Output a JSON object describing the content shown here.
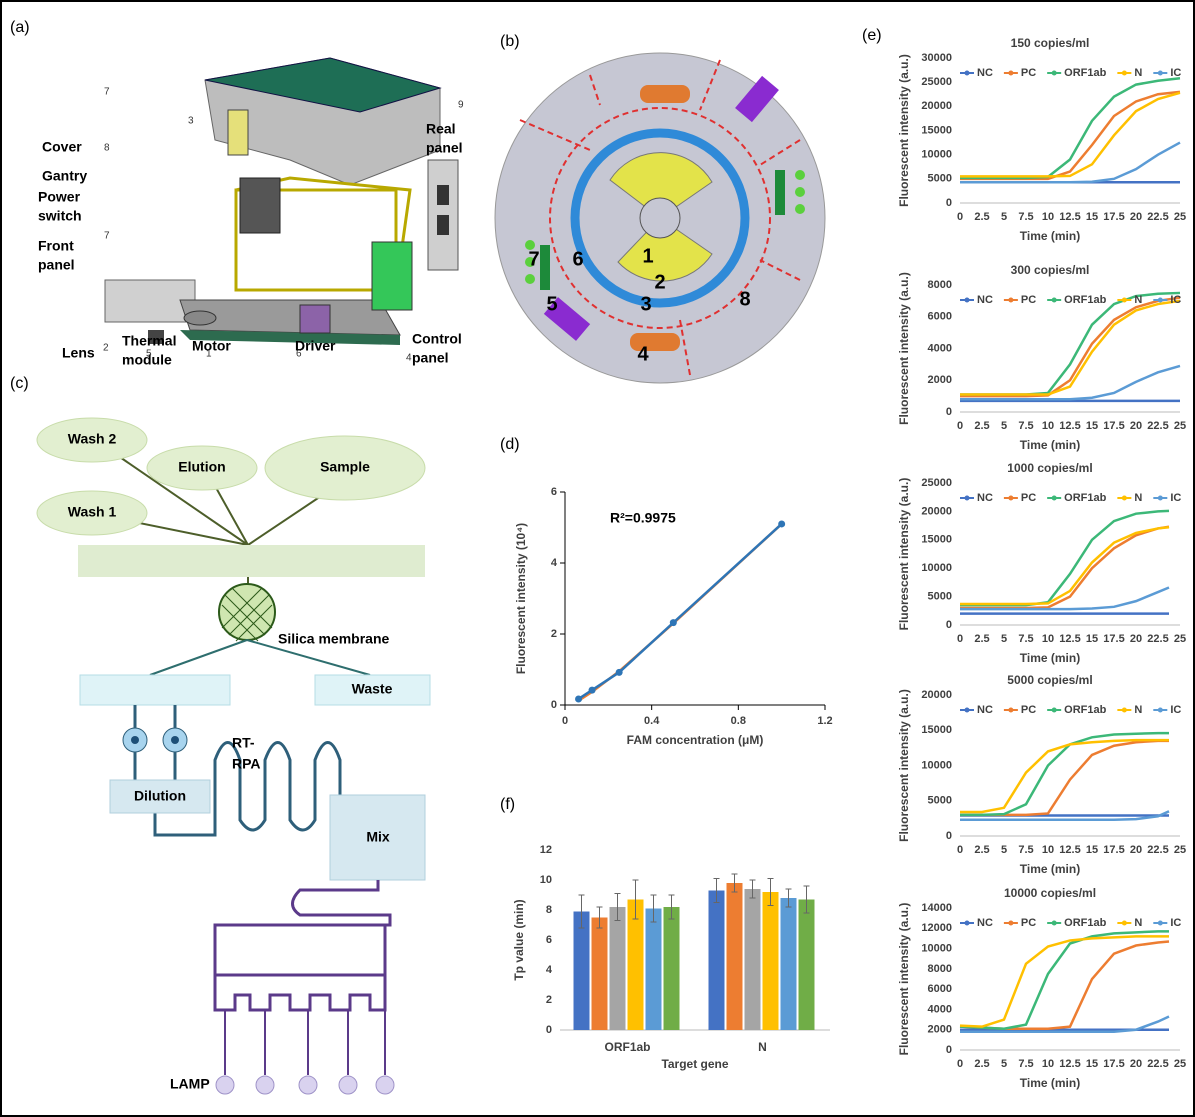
{
  "panel_labels": [
    "(a)",
    "(b)",
    "(c)",
    "(d)",
    "(e)",
    "(f)"
  ],
  "panel_a": {
    "labels": [
      {
        "text": [
          "Cover"
        ],
        "number": "7"
      },
      {
        "text": [
          "Gantry"
        ],
        "number": "3"
      },
      {
        "text": [
          "Power",
          "switch"
        ],
        "number": "8"
      },
      {
        "text": [
          "Front",
          "panel"
        ],
        "number": "7"
      },
      {
        "text": [
          "Lens"
        ],
        "number": "2"
      },
      {
        "text": [
          "Thermal",
          "module"
        ],
        "number": "5"
      },
      {
        "text": [
          "Motor"
        ],
        "number": "1"
      },
      {
        "text": [
          "Driver"
        ],
        "number": "6"
      },
      {
        "text": [
          "Control",
          "panel"
        ],
        "number": "4"
      },
      {
        "text": [
          "Real",
          "panel"
        ],
        "number": "9"
      }
    ]
  },
  "panel_b": {
    "zones": [
      "1",
      "2",
      "3",
      "4",
      "5",
      "6",
      "7",
      "8"
    ]
  },
  "panel_c": {
    "wash2": "Wash 2",
    "elution": "Elution",
    "sample": "Sample",
    "wash1": "Wash 1",
    "membrane": "Silica membrane",
    "waste": "Waste",
    "rt_rpa": [
      "RT-",
      "RPA"
    ],
    "dilution": "Dilution",
    "mix": "Mix",
    "lamp": "LAMP"
  },
  "chart_data": [
    {
      "type": "line",
      "x": [
        0.0625,
        0.125,
        0.25,
        0.5,
        1.0
      ],
      "xlim": [
        0,
        1.2
      ],
      "xticks": [
        0,
        0.4,
        0.8,
        1.2
      ],
      "ylim": [
        0,
        6
      ],
      "yticks": [
        0,
        2,
        4,
        6
      ],
      "x_label": "FAM concentration (μM)",
      "y_label": "Fluorescent intensity (10⁴)",
      "annotation": "R²=0.9975",
      "y_axis_line": true,
      "tick_marks": true,
      "series": [
        {
          "color": "#ed7d31",
          "values": [
            0.12,
            0.37,
            0.95,
            2.3,
            5.1
          ]
        },
        {
          "color": "#2e75b6",
          "values": [
            0.17,
            0.42,
            0.92,
            2.32,
            5.1
          ],
          "markers": true
        }
      ]
    },
    {
      "type": "line",
      "title": "150 copies/ml",
      "x": [
        0,
        2.5,
        5,
        7.5,
        10,
        12.5,
        15,
        17.5,
        20,
        22.5,
        25
      ],
      "xlim": [
        0,
        25
      ],
      "xticks": [
        0,
        2.5,
        5,
        7.5,
        10,
        12.5,
        15,
        17.5,
        20,
        22.5,
        25
      ],
      "ylim": [
        0,
        30000
      ],
      "yticks": [
        0,
        5000,
        10000,
        15000,
        20000,
        25000,
        30000
      ],
      "x_label": "Time (min)",
      "y_label": "Fluorescent intensity (a.u.)",
      "legend": "top",
      "series": [
        {
          "name": "NC",
          "color": "#4472c4",
          "values": [
            4300,
            4300,
            4300,
            4300,
            4300,
            4300,
            4300,
            4300,
            4300,
            4300,
            4300
          ]
        },
        {
          "name": "PC",
          "color": "#ed7d31",
          "values": [
            5000,
            5000,
            5000,
            5000,
            5000,
            6500,
            12000,
            18000,
            21000,
            22500,
            23000
          ]
        },
        {
          "name": "ORF1ab",
          "color": "#3cb878",
          "values": [
            5200,
            5200,
            5200,
            5200,
            5400,
            9000,
            17000,
            22000,
            24500,
            25300,
            25800
          ]
        },
        {
          "name": "N",
          "color": "#ffc000",
          "values": [
            5500,
            5500,
            5500,
            5500,
            5500,
            5600,
            8000,
            14000,
            19000,
            21500,
            22800
          ]
        },
        {
          "name": "IC",
          "color": "#5b9bd5",
          "values": [
            4300,
            4300,
            4300,
            4300,
            4300,
            4300,
            4400,
            5000,
            7000,
            10000,
            12500
          ]
        }
      ]
    },
    {
      "type": "line",
      "title": "300 copies/ml",
      "x": [
        0,
        2.5,
        5,
        7.5,
        10,
        12.5,
        15,
        17.5,
        20,
        22.5,
        25
      ],
      "xlim": [
        0,
        25
      ],
      "xticks": [
        0,
        2.5,
        5,
        7.5,
        10,
        12.5,
        15,
        17.5,
        20,
        22.5,
        25
      ],
      "ylim": [
        0,
        8000
      ],
      "yticks": [
        0,
        2000,
        4000,
        6000,
        8000
      ],
      "x_label": "Time (min)",
      "y_label": "Fluorescent intensity (a.u.)",
      "legend": "top",
      "series": [
        {
          "name": "NC",
          "color": "#4472c4",
          "values": [
            700,
            700,
            700,
            700,
            700,
            700,
            700,
            700,
            700,
            700,
            700
          ]
        },
        {
          "name": "PC",
          "color": "#ed7d31",
          "values": [
            1000,
            1000,
            1000,
            1000,
            1050,
            2000,
            4300,
            5800,
            6600,
            7000,
            7200
          ]
        },
        {
          "name": "ORF1ab",
          "color": "#3cb878",
          "values": [
            1100,
            1100,
            1100,
            1100,
            1200,
            3000,
            5500,
            6800,
            7300,
            7450,
            7500
          ]
        },
        {
          "name": "N",
          "color": "#ffc000",
          "values": [
            1100,
            1100,
            1100,
            1100,
            1100,
            1600,
            3800,
            5500,
            6400,
            6800,
            7000
          ]
        },
        {
          "name": "IC",
          "color": "#5b9bd5",
          "values": [
            800,
            800,
            800,
            800,
            800,
            800,
            900,
            1200,
            1900,
            2500,
            2900
          ]
        }
      ]
    },
    {
      "type": "line",
      "title": "1000 copies/ml",
      "x": [
        0,
        2.5,
        5,
        7.5,
        10,
        12.5,
        15,
        17.5,
        20,
        22.5,
        23.75
      ],
      "xlim": [
        0,
        25
      ],
      "xticks": [
        0,
        2.5,
        5,
        7.5,
        10,
        12.5,
        15,
        17.5,
        20,
        22.5,
        25
      ],
      "ylim": [
        0,
        25000
      ],
      "yticks": [
        0,
        5000,
        10000,
        15000,
        20000,
        25000
      ],
      "x_label": "Time (min)",
      "y_label": "Fluorescent intensity (a.u.)",
      "legend": "top",
      "series": [
        {
          "name": "NC",
          "color": "#4472c4",
          "values": [
            2000,
            2000,
            2000,
            2000,
            2000,
            2000,
            2000,
            2000,
            2000,
            2000,
            2000
          ]
        },
        {
          "name": "PC",
          "color": "#ed7d31",
          "values": [
            3000,
            3000,
            3000,
            3000,
            3100,
            5000,
            10000,
            13500,
            15800,
            17000,
            17300
          ]
        },
        {
          "name": "ORF1ab",
          "color": "#3cb878",
          "values": [
            3500,
            3500,
            3500,
            3500,
            4000,
            9000,
            15000,
            18300,
            19600,
            20000,
            20100
          ]
        },
        {
          "name": "N",
          "color": "#ffc000",
          "values": [
            3700,
            3700,
            3700,
            3700,
            3800,
            6000,
            11000,
            14500,
            16200,
            17000,
            17200
          ]
        },
        {
          "name": "IC",
          "color": "#5b9bd5",
          "values": [
            2800,
            2800,
            2800,
            2800,
            2800,
            2800,
            2900,
            3200,
            4200,
            5800,
            6600
          ]
        }
      ]
    },
    {
      "type": "line",
      "title": "5000 copies/ml",
      "x": [
        0,
        2.5,
        5,
        7.5,
        10,
        12.5,
        15,
        17.5,
        20,
        22.5,
        23.75
      ],
      "xlim": [
        0,
        25
      ],
      "xticks": [
        0,
        2.5,
        5,
        7.5,
        10,
        12.5,
        15,
        17.5,
        20,
        22.5,
        25
      ],
      "ylim": [
        0,
        20000
      ],
      "yticks": [
        0,
        5000,
        10000,
        15000,
        20000
      ],
      "x_label": "Time (min)",
      "y_label": "Fluorescent intensity (a.u.)",
      "legend": "top",
      "series": [
        {
          "name": "NC",
          "color": "#4472c4",
          "values": [
            2900,
            2900,
            2900,
            2900,
            2900,
            2900,
            2900,
            2900,
            2900,
            2900,
            2900
          ]
        },
        {
          "name": "PC",
          "color": "#ed7d31",
          "values": [
            3000,
            3000,
            3000,
            3000,
            3200,
            8000,
            11500,
            12800,
            13300,
            13500,
            13500
          ]
        },
        {
          "name": "ORF1ab",
          "color": "#3cb878",
          "values": [
            3000,
            3000,
            3100,
            4500,
            10000,
            13000,
            14000,
            14400,
            14500,
            14600,
            14600
          ]
        },
        {
          "name": "N",
          "color": "#ffc000",
          "values": [
            3400,
            3400,
            4000,
            9000,
            12000,
            13000,
            13300,
            13500,
            13600,
            13600,
            13600
          ]
        },
        {
          "name": "IC",
          "color": "#5b9bd5",
          "values": [
            2300,
            2300,
            2300,
            2300,
            2300,
            2300,
            2300,
            2300,
            2400,
            2800,
            3500
          ]
        }
      ]
    },
    {
      "type": "line",
      "title": "10000 copies/ml",
      "x": [
        0,
        2.5,
        5,
        7.5,
        10,
        12.5,
        15,
        17.5,
        20,
        22.5,
        23.75
      ],
      "xlim": [
        0,
        25
      ],
      "xticks": [
        0,
        2.5,
        5,
        7.5,
        10,
        12.5,
        15,
        17.5,
        20,
        22.5,
        25
      ],
      "ylim": [
        0,
        14000
      ],
      "yticks": [
        0,
        2000,
        4000,
        6000,
        8000,
        10000,
        12000,
        14000
      ],
      "x_label": "Time (min)",
      "y_label": "Fluorescent intensity (a.u.)",
      "legend": "top",
      "series": [
        {
          "name": "NC",
          "color": "#4472c4",
          "values": [
            2000,
            2000,
            2000,
            2000,
            2000,
            2000,
            2000,
            2000,
            2000,
            2000,
            2000
          ]
        },
        {
          "name": "PC",
          "color": "#ed7d31",
          "values": [
            2300,
            2200,
            2100,
            2100,
            2100,
            2300,
            7000,
            9500,
            10300,
            10600,
            10700
          ]
        },
        {
          "name": "ORF1ab",
          "color": "#3cb878",
          "values": [
            2300,
            2200,
            2100,
            2500,
            7500,
            10500,
            11200,
            11500,
            11600,
            11700,
            11700
          ]
        },
        {
          "name": "N",
          "color": "#ffc000",
          "values": [
            2400,
            2300,
            3000,
            8500,
            10200,
            10800,
            11000,
            11100,
            11200,
            11200,
            11200
          ]
        },
        {
          "name": "IC",
          "color": "#5b9bd5",
          "values": [
            1800,
            1800,
            1800,
            1800,
            1800,
            1800,
            1800,
            1800,
            2000,
            2800,
            3300
          ]
        }
      ]
    },
    {
      "type": "bar",
      "categories": [
        "ORF1ab",
        "N"
      ],
      "ylim": [
        0,
        12
      ],
      "yticks": [
        0,
        2,
        4,
        6,
        8,
        10,
        12
      ],
      "x_label": "Target gene",
      "y_label": "Tp value (min)",
      "series": [
        {
          "color": "#4472c4",
          "values": [
            7.9,
            9.3
          ],
          "errors": [
            1.1,
            0.8
          ]
        },
        {
          "color": "#ed7d31",
          "values": [
            7.5,
            9.8
          ],
          "errors": [
            0.7,
            0.6
          ]
        },
        {
          "color": "#a5a5a5",
          "values": [
            8.2,
            9.4
          ],
          "errors": [
            0.9,
            0.6
          ]
        },
        {
          "color": "#ffc000",
          "values": [
            8.7,
            9.2
          ],
          "errors": [
            1.3,
            0.9
          ]
        },
        {
          "color": "#5b9bd5",
          "values": [
            8.1,
            8.8
          ],
          "errors": [
            0.9,
            0.6
          ]
        },
        {
          "color": "#70ad47",
          "values": [
            8.2,
            8.7
          ],
          "errors": [
            0.8,
            0.9
          ]
        }
      ]
    }
  ]
}
